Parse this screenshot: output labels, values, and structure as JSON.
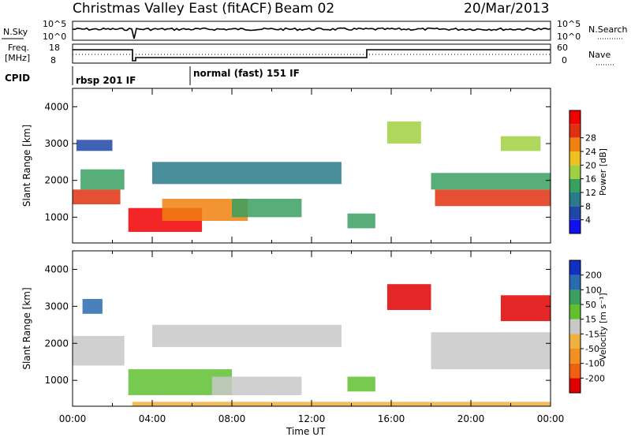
{
  "header": {
    "station": "Christmas Valley East (fitACF)",
    "beam": "Beam 02",
    "date": "20/Mar/2013"
  },
  "status_panels": {
    "nsky_label": "N.Sky",
    "nsky_ticks": [
      "10^5",
      "10^0"
    ],
    "nsearch_label": "N.Search",
    "nsearch_ticks": [
      "10^5",
      "10^0"
    ],
    "freq_label_1": "Freq.",
    "freq_label_2": "[MHz]",
    "freq_ticks": [
      "18",
      "8"
    ],
    "nave_label": "Nave",
    "nave_ticks": [
      "60",
      "0"
    ],
    "cpid_label": "CPID",
    "cpid_entries": [
      "rbsp 201 IF",
      "normal (fast) 151 IF"
    ]
  },
  "colors": {
    "power": [
      "#1010f0",
      "#1f46a8",
      "#2a7a8a",
      "#3aa060",
      "#a0d040",
      "#f0c020",
      "#f08010",
      "#e03010",
      "#f00000"
    ],
    "velocity": [
      "#1030c0",
      "#2a6ab0",
      "#3aa060",
      "#60c030",
      "#c8c8c8",
      "#f0b040",
      "#f09020",
      "#f06010",
      "#e00000"
    ],
    "empty_shade": "#ffffff"
  },
  "chart_data": [
    {
      "type": "heatmap",
      "name": "Power",
      "title": "",
      "xlabel": "Time UT",
      "ylabel": "Slant Range [km]",
      "xlim": [
        0,
        24
      ],
      "ylim": [
        300,
        4500
      ],
      "x_tick_labels": [
        "00:00",
        "04:00",
        "08:00",
        "12:00",
        "16:00",
        "20:00",
        "00:00"
      ],
      "y_ticks": [
        1000,
        2000,
        3000,
        4000
      ],
      "colorbar": {
        "label": "Power [dB]",
        "ticks": [
          "4",
          "8",
          "12",
          "16",
          "20",
          "24",
          "28"
        ],
        "range": [
          0,
          30
        ]
      },
      "regions": [
        {
          "t": [
            0.0,
            2.4
          ],
          "r": [
            1350,
            1750
          ],
          "value": 26
        },
        {
          "t": [
            0.4,
            2.6
          ],
          "r": [
            1750,
            2300
          ],
          "value": 12
        },
        {
          "t": [
            2.8,
            6.5
          ],
          "r": [
            600,
            1250
          ],
          "value": 27
        },
        {
          "t": [
            4.5,
            8.8
          ],
          "r": [
            900,
            1500
          ],
          "value": 22
        },
        {
          "t": [
            8.0,
            11.5
          ],
          "r": [
            1000,
            1500
          ],
          "value": 12
        },
        {
          "t": [
            13.8,
            15.2
          ],
          "r": [
            700,
            1100
          ],
          "value": 10
        },
        {
          "t": [
            4.0,
            13.5
          ],
          "r": [
            1900,
            2500
          ],
          "value": 8
        },
        {
          "t": [
            0.2,
            2.0
          ],
          "r": [
            2800,
            3100
          ],
          "value": 6
        },
        {
          "t": [
            15.8,
            17.5
          ],
          "r": [
            3000,
            3600
          ],
          "value": 14
        },
        {
          "t": [
            18.2,
            24.0
          ],
          "r": [
            1300,
            1750
          ],
          "value": 26
        },
        {
          "t": [
            18.0,
            24.0
          ],
          "r": [
            1750,
            2200
          ],
          "value": 12
        },
        {
          "t": [
            21.5,
            23.5
          ],
          "r": [
            2800,
            3200
          ],
          "value": 14
        }
      ]
    },
    {
      "type": "heatmap",
      "name": "Velocity",
      "title": "",
      "xlabel": "Time UT",
      "ylabel": "Slant Range [km]",
      "xlim": [
        0,
        24
      ],
      "ylim": [
        300,
        4500
      ],
      "x_tick_labels": [
        "00:00",
        "04:00",
        "08:00",
        "12:00",
        "16:00",
        "20:00",
        "00:00"
      ],
      "y_ticks": [
        1000,
        2000,
        3000,
        4000
      ],
      "colorbar": {
        "label": "Velocity [m s⁻¹]",
        "ticks": [
          "200",
          "100",
          "50",
          "15",
          "-15",
          "-50",
          "-100",
          "-200"
        ],
        "range": [
          -250,
          250
        ]
      },
      "regions": [
        {
          "t": [
            0.0,
            2.6
          ],
          "r": [
            1400,
            2200
          ],
          "value": 0
        },
        {
          "t": [
            2.8,
            8.0
          ],
          "r": [
            600,
            1300
          ],
          "value": 60
        },
        {
          "t": [
            7.0,
            11.5
          ],
          "r": [
            600,
            1100
          ],
          "value": 0
        },
        {
          "t": [
            13.8,
            15.2
          ],
          "r": [
            700,
            1100
          ],
          "value": 40
        },
        {
          "t": [
            4.0,
            13.5
          ],
          "r": [
            1900,
            2500
          ],
          "value": 0
        },
        {
          "t": [
            15.8,
            18.0
          ],
          "r": [
            2900,
            3600
          ],
          "value": -220
        },
        {
          "t": [
            21.5,
            24.0
          ],
          "r": [
            2600,
            3300
          ],
          "value": -220
        },
        {
          "t": [
            18.0,
            24.0
          ],
          "r": [
            1300,
            2300
          ],
          "value": 0
        },
        {
          "t": [
            0.5,
            1.5
          ],
          "r": [
            2800,
            3200
          ],
          "value": 150
        },
        {
          "t": [
            3.0,
            24.0
          ],
          "r": [
            300,
            420
          ],
          "value": -80
        }
      ]
    }
  ]
}
